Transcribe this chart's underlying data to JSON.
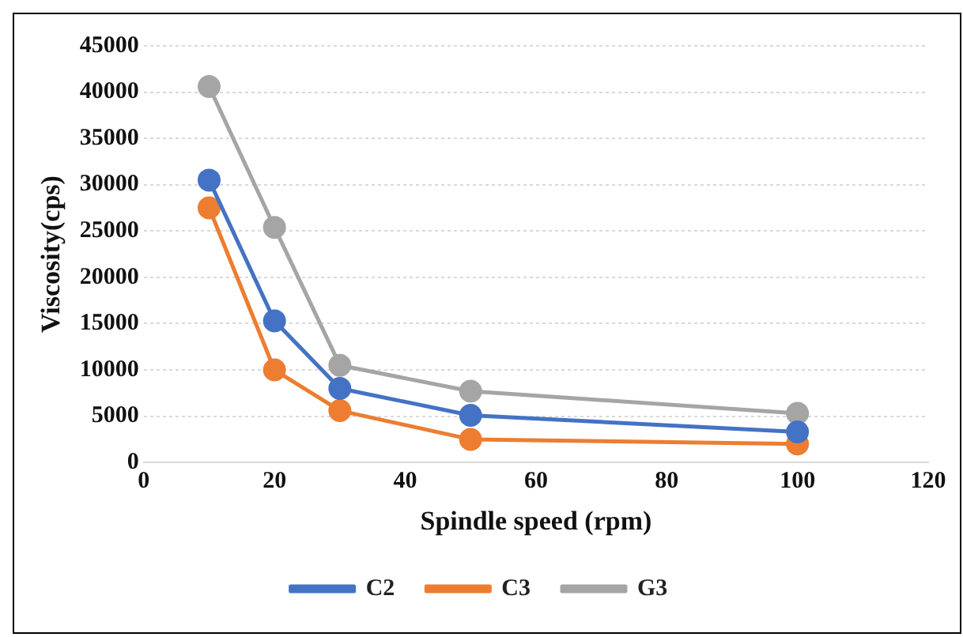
{
  "chart_data": {
    "type": "line",
    "xlabel": "Spindle speed (rpm)",
    "ylabel": "Viscosity(cps)",
    "x": [
      10,
      20,
      30,
      50,
      100
    ],
    "xlim": [
      0,
      120
    ],
    "xticks": [
      0,
      20,
      40,
      60,
      80,
      100,
      120
    ],
    "ylim": [
      0,
      45000
    ],
    "yticks": [
      0,
      5000,
      10000,
      15000,
      20000,
      25000,
      30000,
      35000,
      40000,
      45000
    ],
    "grid": "y",
    "legend": "bottom",
    "marker": "circle",
    "line_style": "solid",
    "series": [
      {
        "name": "C2",
        "color": "#4472c4",
        "values": [
          30500,
          15300,
          8000,
          5100,
          3300
        ]
      },
      {
        "name": "C3",
        "color": "#ed7d31",
        "values": [
          27500,
          10000,
          5600,
          2500,
          2000
        ]
      },
      {
        "name": "G3",
        "color": "#a5a5a5",
        "values": [
          40600,
          25400,
          10500,
          7700,
          5300
        ]
      }
    ]
  }
}
